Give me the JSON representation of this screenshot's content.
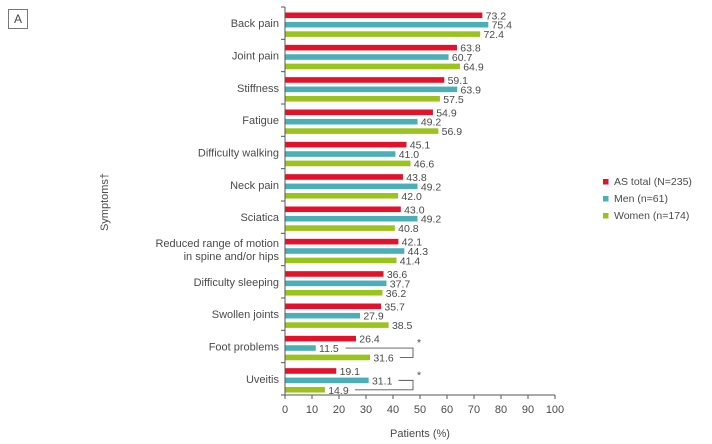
{
  "panel_label": "A",
  "colors": {
    "total": "#E3112A",
    "men": "#4BAFB8",
    "women": "#9BC31E",
    "axis": "#555555"
  },
  "chart_data": {
    "type": "bar",
    "orientation": "horizontal",
    "title": "",
    "xlabel": "Patients (%)",
    "ylabel": "Symptoms†",
    "xlim": [
      0,
      100
    ],
    "xticks": [
      "0",
      "10",
      "20",
      "30",
      "40",
      "50",
      "60",
      "70",
      "80",
      "90",
      "100"
    ],
    "grid": false,
    "legend_position": "right",
    "categories": [
      [
        "Back pain"
      ],
      [
        "Joint pain"
      ],
      [
        "Stiffness"
      ],
      [
        "Fatigue"
      ],
      [
        "Difficulty walking"
      ],
      [
        "Neck pain"
      ],
      [
        "Sciatica"
      ],
      [
        "Reduced range of motion",
        "in spine and/or hips"
      ],
      [
        "Difficulty sleeping"
      ],
      [
        "Swollen joints"
      ],
      [
        "Foot problems"
      ],
      [
        "Uveitis"
      ]
    ],
    "series": [
      {
        "name": "AS total (N=235)",
        "key": "total",
        "values": [
          73.2,
          63.8,
          59.1,
          54.9,
          45.1,
          43.8,
          43.0,
          42.1,
          36.6,
          35.7,
          26.4,
          19.1
        ],
        "labels": [
          "73.2",
          "63.8",
          "59.1",
          "54.9",
          "45.1",
          "43.8",
          "43.0",
          "42.1",
          "36.6",
          "35.7",
          "26.4",
          "19.1"
        ]
      },
      {
        "name": "Men (n=61)",
        "key": "men",
        "values": [
          75.4,
          60.7,
          63.9,
          49.2,
          41.0,
          49.2,
          49.2,
          44.3,
          37.7,
          27.9,
          11.5,
          31.1
        ],
        "labels": [
          "75.4",
          "60.7",
          "63.9",
          "49.2",
          "41.0",
          "49.2",
          "49.2",
          "44.3",
          "37.7",
          "27.9",
          "11.5",
          "31.1"
        ]
      },
      {
        "name": "Women (n=174)",
        "key": "women",
        "values": [
          72.4,
          64.9,
          57.5,
          56.9,
          46.6,
          42.0,
          40.8,
          41.4,
          36.2,
          38.5,
          31.6,
          14.9
        ],
        "labels": [
          "72.4",
          "64.9",
          "57.5",
          "56.9",
          "46.6",
          "42.0",
          "40.8",
          "41.4",
          "36.2",
          "38.5",
          "31.6",
          "14.9"
        ]
      }
    ],
    "annotations": [
      {
        "category_index": 10,
        "between": [
          "Men (n=61)",
          "Women (n=174)"
        ],
        "text": "*"
      },
      {
        "category_index": 11,
        "between": [
          "Men (n=61)",
          "Women (n=174)"
        ],
        "text": "*"
      }
    ]
  }
}
